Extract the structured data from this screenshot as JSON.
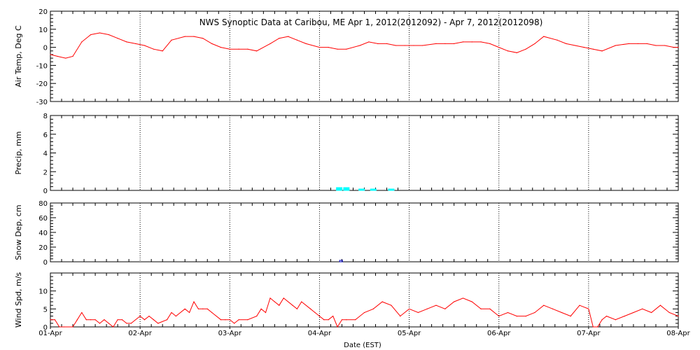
{
  "chart_data": {
    "title": "NWS Synoptic Data at Caribou, ME   Apr  1, 2012(2012092) - Apr  7, 2012(2012098)",
    "xlabel": "Date (EST)",
    "x_tick_labels": [
      "01-Apr",
      "02-Apr",
      "03-Apr",
      "04-Apr",
      "05-Apr",
      "06-Apr",
      "07-Apr",
      "08-Apr"
    ],
    "xlim": [
      0,
      7
    ],
    "panels": [
      {
        "type": "line",
        "ylabel": "Air Temp, Deg C",
        "ylim": [
          -30,
          20
        ],
        "yticks": [
          -30,
          -20,
          -10,
          0,
          10,
          20
        ],
        "color": "#ff0000",
        "series": [
          {
            "x": [
              0,
              0.08,
              0.17,
              0.25,
              0.35,
              0.45,
              0.55,
              0.65,
              0.75,
              0.85,
              0.95,
              1.05,
              1.15,
              1.25,
              1.35,
              1.5,
              1.6,
              1.7,
              1.8,
              1.9,
              2.0,
              2.1,
              2.2,
              2.3,
              2.45,
              2.55,
              2.65,
              2.75,
              2.85,
              3.0,
              3.1,
              3.2,
              3.3,
              3.45,
              3.55,
              3.65,
              3.75,
              3.85,
              3.95,
              4.05,
              4.15,
              4.3,
              4.4,
              4.5,
              4.6,
              4.7,
              4.8,
              4.9,
              5.0,
              5.1,
              5.2,
              5.3,
              5.4,
              5.5,
              5.65,
              5.75,
              5.85,
              5.95,
              6.05,
              6.15,
              6.3,
              6.45,
              6.55,
              6.65,
              6.75,
              6.85,
              6.95,
              7.0
            ],
            "y": [
              -4,
              -5,
              -6,
              -5,
              3,
              7,
              8,
              7,
              5,
              3,
              2,
              1,
              -1,
              -2,
              4,
              6,
              6,
              5,
              2,
              0,
              -1,
              -1,
              -1,
              -2,
              2,
              5,
              6,
              4,
              2,
              0,
              0,
              -1,
              -1,
              1,
              3,
              2,
              2,
              1,
              1,
              1,
              1,
              2,
              2,
              2,
              3,
              3,
              3,
              2,
              0,
              -2,
              -3,
              -1,
              2,
              6,
              4,
              2,
              1,
              0,
              -1,
              -2,
              1,
              2,
              2,
              2,
              1,
              1,
              0,
              0
            ]
          }
        ]
      },
      {
        "type": "bar",
        "ylabel": "Precip, mm",
        "ylim": [
          0,
          8
        ],
        "yticks": [
          0,
          2,
          4,
          6,
          8
        ],
        "color": "#00ffff",
        "series": [
          {
            "x": [
              3.22,
              3.3,
              3.47,
              3.6,
              3.8
            ],
            "values": [
              0.3,
              0.3,
              0.1,
              0.1,
              0.1
            ]
          }
        ]
      },
      {
        "type": "bar",
        "ylabel": "Snow Dep, cm",
        "ylim": [
          0,
          80
        ],
        "yticks": [
          0,
          20,
          40,
          60,
          80
        ],
        "color": "#0000c0",
        "series": [
          {
            "x": [
              3.24
            ],
            "values": [
              2
            ]
          }
        ]
      },
      {
        "type": "line",
        "ylabel": "Wind Spd, m/s",
        "ylim": [
          0,
          15
        ],
        "yticks": [
          0,
          5,
          10
        ],
        "color": "#ff0000",
        "series": [
          {
            "x": [
              0,
              0.05,
              0.1,
              0.15,
              0.25,
              0.3,
              0.35,
              0.4,
              0.45,
              0.5,
              0.55,
              0.6,
              0.65,
              0.7,
              0.75,
              0.8,
              0.85,
              0.9,
              1.0,
              1.05,
              1.1,
              1.15,
              1.2,
              1.3,
              1.35,
              1.4,
              1.5,
              1.55,
              1.6,
              1.65,
              1.7,
              1.75,
              1.8,
              1.9,
              1.95,
              2.0,
              2.05,
              2.1,
              2.2,
              2.3,
              2.35,
              2.4,
              2.45,
              2.5,
              2.55,
              2.6,
              2.7,
              2.75,
              2.8,
              2.9,
              2.95,
              3.0,
              3.05,
              3.1,
              3.15,
              3.2,
              3.25,
              3.3,
              3.4,
              3.5,
              3.6,
              3.7,
              3.8,
              3.9,
              4.0,
              4.1,
              4.2,
              4.3,
              4.4,
              4.5,
              4.6,
              4.7,
              4.8,
              4.9,
              5.0,
              5.1,
              5.2,
              5.3,
              5.4,
              5.5,
              5.6,
              5.7,
              5.8,
              5.9,
              6.0,
              6.05,
              6.1,
              6.15,
              6.2,
              6.3,
              6.4,
              6.5,
              6.6,
              6.7,
              6.8,
              6.9,
              7.0
            ],
            "y": [
              2,
              2,
              0,
              0,
              0,
              2,
              4,
              2,
              2,
              2,
              1,
              2,
              1,
              0,
              2,
              2,
              1,
              1,
              3,
              2,
              3,
              2,
              1,
              2,
              4,
              3,
              5,
              4,
              7,
              5,
              5,
              5,
              4,
              2,
              2,
              2,
              1,
              2,
              2,
              3,
              5,
              4,
              8,
              7,
              6,
              8,
              6,
              5,
              7,
              5,
              4,
              3,
              2,
              2,
              3,
              0,
              2,
              2,
              2,
              4,
              5,
              7,
              6,
              3,
              5,
              4,
              5,
              6,
              5,
              7,
              8,
              7,
              5,
              5,
              3,
              4,
              3,
              3,
              4,
              6,
              5,
              4,
              3,
              6,
              5,
              0,
              0,
              2,
              3,
              2,
              3,
              4,
              5,
              4,
              6,
              4,
              3
            ]
          }
        ]
      }
    ]
  }
}
